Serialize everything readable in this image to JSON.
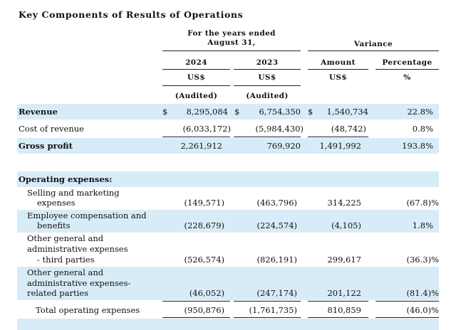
{
  "title": "Key Components of Results of Operations",
  "header": {
    "period_label": "For the  years ended August  31,",
    "period_line1": "For the  years ended",
    "period_line2": "August  31,",
    "variance_label": "Variance",
    "col_2024": "2024",
    "col_2023": "2023",
    "col_amount": "Amount",
    "col_percentage": "Percentage",
    "unit_2024": "US$",
    "unit_2023": "US$",
    "unit_amount": "US$",
    "unit_pct": "%",
    "audited_2024": "(Audited)",
    "audited_2023": "(Audited)"
  },
  "rows": {
    "revenue": {
      "label": "Revenue",
      "y2024": "8,295,084",
      "y2023": "6,754,350",
      "amount": "1,540,734",
      "pct": "22.8%",
      "currency": "$"
    },
    "cost_of_revenue": {
      "label": "Cost of revenue",
      "y2024": "(6,033,172)",
      "y2023": "(5,984,430)",
      "amount": "(48,742)",
      "pct": "0.8%"
    },
    "gross_profit": {
      "label": "Gross profit",
      "y2024": "2,261,912",
      "y2023": "769,920",
      "amount": "1,491,992",
      "pct": "193.8%"
    },
    "operating_expenses": {
      "label": "Operating expenses:"
    },
    "selling": {
      "label_line1": "Selling and marketing",
      "label_line2": "expenses",
      "y2024": "(149,571)",
      "y2023": "(463,796)",
      "amount": "314,225",
      "pct": "(67.8)%"
    },
    "employee": {
      "label_line1": "Employee compensation and",
      "label_line2": "benefits",
      "y2024": "(228,679)",
      "y2023": "(224,574)",
      "amount": "(4,105)",
      "pct": "1.8%"
    },
    "other_third": {
      "label_line1": "Other general and",
      "label_line2": "administrative expenses",
      "label_line3": "- third parties",
      "y2024": "(526,574)",
      "y2023": "(826,191)",
      "amount": "299,617",
      "pct": "(36.3)%"
    },
    "other_related": {
      "label_line1": "Other general and",
      "label_line2": "administrative expenses-",
      "label_line3": "related parties",
      "y2024": "(46,052)",
      "y2023": "(247,174)",
      "amount": "201,122",
      "pct": "(81.4)%"
    },
    "total_opex": {
      "label": "Total operating expenses",
      "y2024": "(950,876)",
      "y2023": "(1,761,735)",
      "amount": "810,859",
      "pct": "(46.0)%"
    }
  },
  "colors": {
    "band": "#d8ecf8"
  }
}
